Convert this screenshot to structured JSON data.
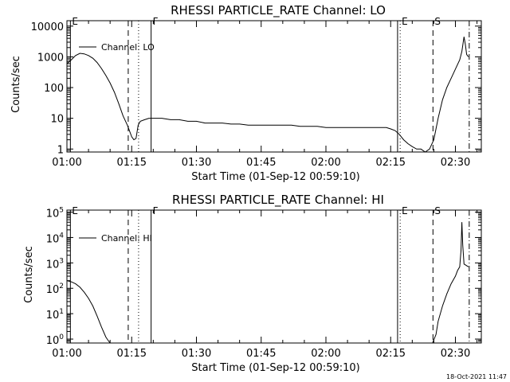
{
  "chart_data": [
    {
      "type": "line",
      "title": "RHESSI PARTICLE_RATE Channel: LO",
      "xlabel": "Start Time (01-Sep-12 00:59:10)",
      "ylabel": "Counts/sec",
      "y_scale": "log",
      "ylim": [
        0.8,
        15000
      ],
      "xlim_minutes": [
        0,
        96
      ],
      "x_tick_labels": [
        {
          "label": "01:00",
          "minute": 0
        },
        {
          "label": "01:15",
          "minute": 15
        },
        {
          "label": "01:30",
          "minute": 30
        },
        {
          "label": "01:45",
          "minute": 45
        },
        {
          "label": "02:00",
          "minute": 60
        },
        {
          "label": "02:15",
          "minute": 75
        },
        {
          "label": "02:30",
          "minute": 90
        }
      ],
      "y_tick_labels": [
        {
          "label": "1",
          "value": 1
        },
        {
          "label": "10",
          "value": 10
        },
        {
          "label": "100",
          "value": 100
        },
        {
          "label": "1000",
          "value": 1000
        },
        {
          "label": "10000",
          "value": 10000
        }
      ],
      "legend": {
        "entry": "Channel: LO",
        "placement": "top-left"
      },
      "markers": [
        {
          "label": "E",
          "minute": 0.8,
          "style": "solid"
        },
        {
          "label": "",
          "minute": 14.2,
          "style": "dashed"
        },
        {
          "label": "",
          "minute": 16.6,
          "style": "dotted"
        },
        {
          "label": "F",
          "minute": 19.5,
          "style": "solid"
        },
        {
          "label": "",
          "minute": 76.6,
          "style": "solid"
        },
        {
          "label": "E",
          "minute": 77.2,
          "style": "dotted"
        },
        {
          "label": "S",
          "minute": 84.8,
          "style": "dashed"
        },
        {
          "label": "",
          "minute": 93.2,
          "style": "dashdot"
        }
      ],
      "series": [
        {
          "x": [
            0,
            1,
            2,
            3,
            4,
            5,
            6,
            7,
            8,
            9,
            10,
            11,
            12,
            13,
            14,
            15,
            15.5,
            16,
            16.5,
            17,
            18,
            19,
            20,
            22,
            24,
            26,
            28,
            30,
            32,
            34,
            36,
            38,
            40,
            42,
            44,
            46,
            48,
            50,
            52,
            54,
            56,
            58,
            60,
            62,
            64,
            66,
            68,
            70,
            72,
            74,
            75,
            76,
            77,
            78,
            79,
            80,
            81,
            82,
            83,
            84,
            85,
            86,
            87,
            88,
            89,
            90,
            91,
            91.5,
            92,
            92.3,
            92.6,
            93
          ],
          "y": [
            600,
            800,
            1100,
            1300,
            1250,
            1100,
            900,
            650,
            420,
            250,
            140,
            70,
            30,
            12,
            6,
            2.5,
            2,
            2.2,
            6,
            8,
            9,
            10,
            10,
            10,
            9,
            9,
            8,
            8,
            7,
            7,
            7,
            6.5,
            6.5,
            6,
            6,
            6,
            6,
            6,
            6,
            5.5,
            5.5,
            5.5,
            5,
            5,
            5,
            5,
            5,
            5,
            5,
            5,
            4.5,
            4,
            3,
            2,
            1.5,
            1.2,
            1,
            1,
            0.8,
            1,
            2,
            10,
            40,
            100,
            200,
            400,
            800,
            1500,
            4500,
            2500,
            1200,
            1000
          ]
        }
      ]
    },
    {
      "type": "line",
      "title": "RHESSI PARTICLE_RATE Channel: HI",
      "xlabel": "Start Time (01-Sep-12 00:59:10)",
      "ylabel": "Counts/sec",
      "y_scale": "log",
      "ylim": [
        0.7,
        120000
      ],
      "xlim_minutes": [
        0,
        96
      ],
      "x_tick_labels": [
        {
          "label": "01:00",
          "minute": 0
        },
        {
          "label": "01:15",
          "minute": 15
        },
        {
          "label": "01:30",
          "minute": 30
        },
        {
          "label": "01:45",
          "minute": 45
        },
        {
          "label": "02:00",
          "minute": 60
        },
        {
          "label": "02:15",
          "minute": 75
        },
        {
          "label": "02:30",
          "minute": 90
        }
      ],
      "y_tick_labels": [
        {
          "base": "10",
          "exp": "0",
          "value": 1
        },
        {
          "base": "10",
          "exp": "1",
          "value": 10
        },
        {
          "base": "10",
          "exp": "2",
          "value": 100
        },
        {
          "base": "10",
          "exp": "3",
          "value": 1000
        },
        {
          "base": "10",
          "exp": "4",
          "value": 10000
        },
        {
          "base": "10",
          "exp": "5",
          "value": 100000
        }
      ],
      "legend": {
        "entry": "Channel: HI",
        "placement": "top-left"
      },
      "markers": [
        {
          "label": "E",
          "minute": 0.8,
          "style": "solid"
        },
        {
          "label": "",
          "minute": 14.2,
          "style": "dashed"
        },
        {
          "label": "",
          "minute": 16.6,
          "style": "dotted"
        },
        {
          "label": "F",
          "minute": 19.5,
          "style": "solid"
        },
        {
          "label": "",
          "minute": 76.6,
          "style": "solid"
        },
        {
          "label": "E",
          "minute": 77.2,
          "style": "dotted"
        },
        {
          "label": "S",
          "minute": 84.8,
          "style": "dashed"
        },
        {
          "label": "",
          "minute": 93.2,
          "style": "dashdot"
        }
      ],
      "series": [
        {
          "x": [
            0,
            1,
            2,
            3,
            4,
            5,
            6,
            7,
            8,
            9,
            9.5,
            10,
            84.7,
            85.5,
            86,
            87,
            88,
            89,
            90,
            90.5,
            91,
            91.3,
            91.5,
            91.7,
            92,
            92.5,
            93
          ],
          "y": [
            200,
            180,
            150,
            110,
            70,
            40,
            20,
            8,
            3,
            1.2,
            0.9,
            0.7,
            0.7,
            1.5,
            5,
            20,
            60,
            150,
            300,
            500,
            700,
            3000,
            40000,
            5000,
            900,
            800,
            700
          ]
        }
      ]
    }
  ],
  "footer_timestamp": "18-Oct-2021 11:47"
}
